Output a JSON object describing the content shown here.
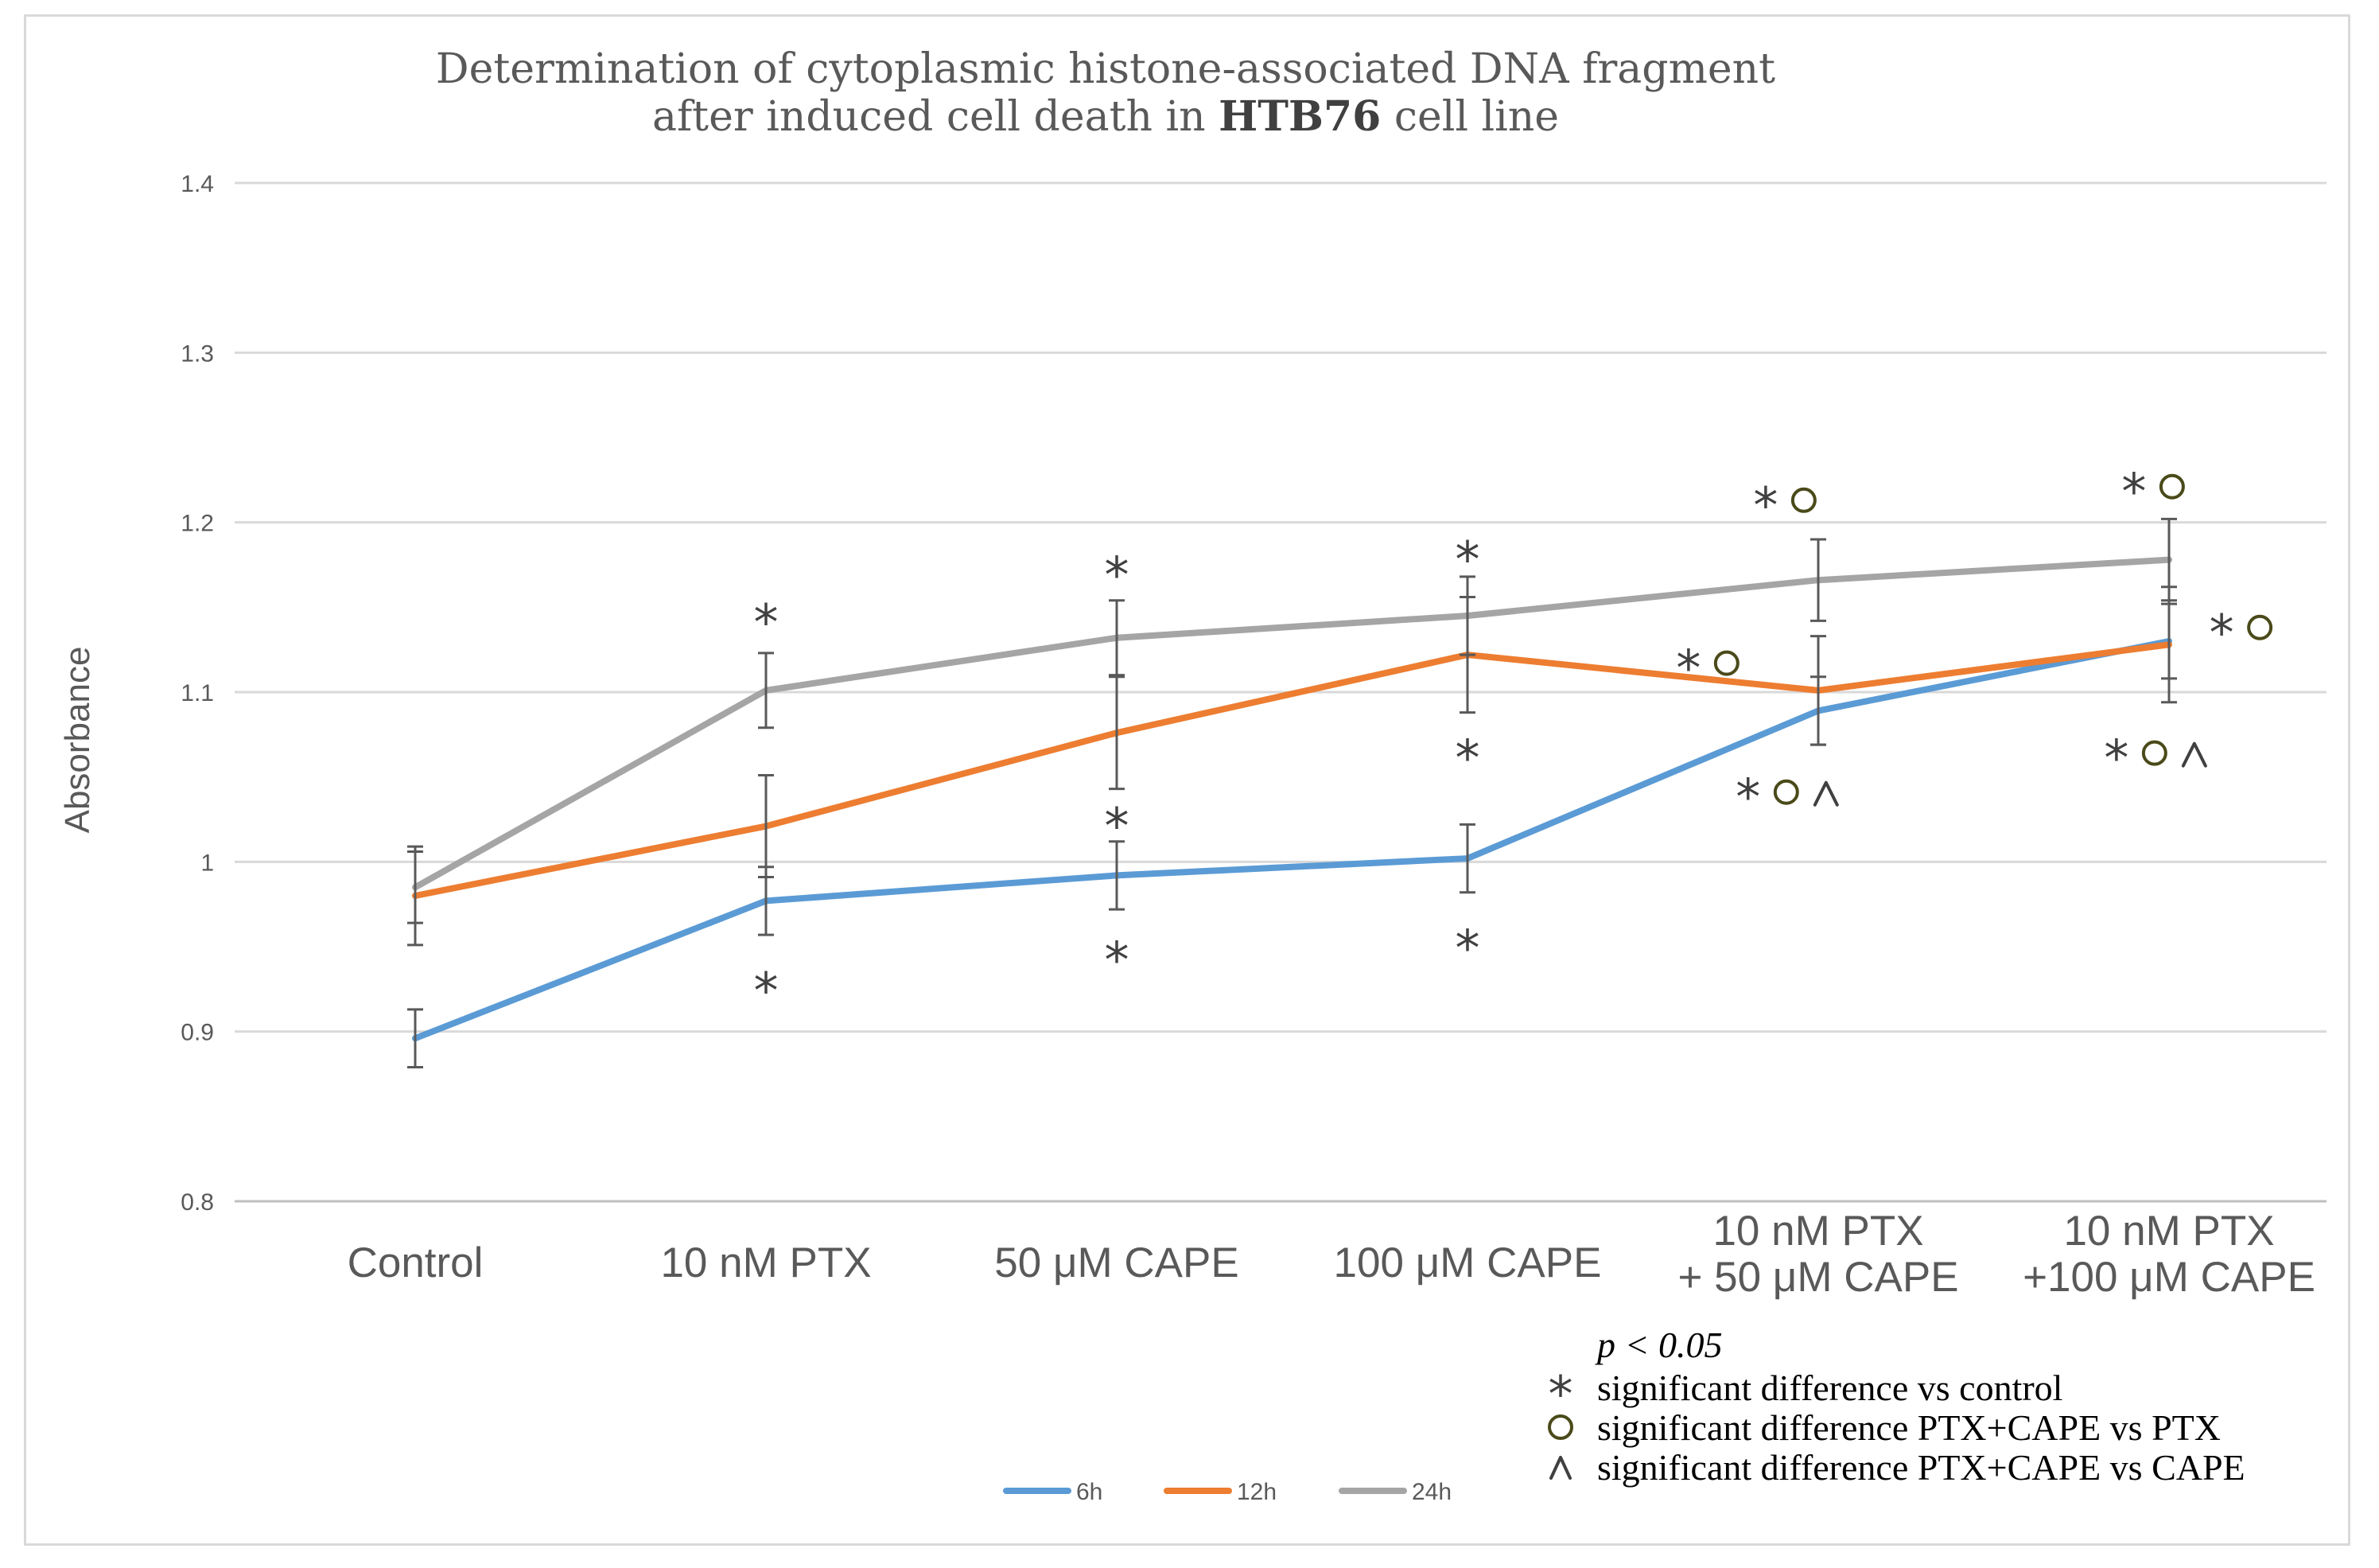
{
  "chart_data": {
    "type": "line",
    "title_line1": "Determination of cytoplasmic histone-associated DNA fragment",
    "title_line2_pre": "after induced cell death in ",
    "title_line2_bold": "HTB76",
    "title_line2_post": " cell line",
    "ylabel": "Absorbance",
    "xlabel": "",
    "ylim": [
      0.8,
      1.4
    ],
    "yticks": [
      0.8,
      0.9,
      1,
      1.1,
      1.2,
      1.3,
      1.4
    ],
    "ytick_labels": [
      "0.8",
      "0.9",
      "1",
      "1.1",
      "1.2",
      "1.3",
      "1.4"
    ],
    "grid": true,
    "categories": [
      [
        "Control"
      ],
      [
        "10 nM PTX"
      ],
      [
        "50 μM CAPE"
      ],
      [
        "100 μM CAPE"
      ],
      [
        "10 nM PTX",
        "+ 50 μM CAPE"
      ],
      [
        "10 nM PTX",
        "+100 μM CAPE"
      ]
    ],
    "series": [
      {
        "name": "6h",
        "color": "#5B9BD5",
        "values": [
          0.896,
          0.977,
          0.992,
          1.002,
          1.089,
          1.13
        ],
        "errors": [
          0.017,
          0.02,
          0.02,
          0.02,
          0.02,
          0.022
        ]
      },
      {
        "name": "12h",
        "color": "#ED7D31",
        "values": [
          0.98,
          1.021,
          1.076,
          1.122,
          1.101,
          1.128
        ],
        "errors": [
          0.029,
          0.03,
          0.033,
          0.034,
          0.032,
          0.034
        ]
      },
      {
        "name": "24h",
        "color": "#A5A5A5",
        "values": [
          0.985,
          1.101,
          1.132,
          1.145,
          1.166,
          1.178
        ],
        "errors": [
          0.021,
          0.022,
          0.022,
          0.023,
          0.024,
          0.024
        ]
      }
    ],
    "legend_position": "bottom",
    "significance_marks": [
      {
        "category": 1,
        "value": 1.145,
        "text": "*",
        "circle": false,
        "caret": false
      },
      {
        "category": 1,
        "value": 0.928,
        "text": "*",
        "circle": false,
        "caret": false
      },
      {
        "category": 2,
        "value": 1.173,
        "text": "*",
        "circle": false,
        "caret": false
      },
      {
        "category": 2,
        "value": 1.025,
        "text": "*",
        "circle": false,
        "caret": false
      },
      {
        "category": 2,
        "value": 0.946,
        "text": "*",
        "circle": false,
        "caret": false
      },
      {
        "category": 3,
        "value": 1.182,
        "text": "*",
        "circle": false,
        "caret": false
      },
      {
        "category": 3,
        "value": 1.065,
        "text": "*",
        "circle": false,
        "caret": false
      },
      {
        "category": 3,
        "value": 0.953,
        "text": "*",
        "circle": false,
        "caret": false
      },
      {
        "category": 4,
        "value": 1.214,
        "text": "*",
        "circle": true,
        "caret": false,
        "dx": -0.15
      },
      {
        "category": 4,
        "value": 1.118,
        "text": "*",
        "circle": true,
        "caret": false,
        "dx": -0.37
      },
      {
        "category": 4,
        "value": 1.042,
        "text": "*",
        "circle": true,
        "caret": true,
        "dx": -0.2
      },
      {
        "category": 5,
        "value": 1.222,
        "text": "*",
        "circle": true,
        "caret": false,
        "dx": -0.1
      },
      {
        "category": 5,
        "value": 1.139,
        "text": "*",
        "circle": true,
        "caret": false,
        "dx": 0.15
      },
      {
        "category": 5,
        "value": 1.065,
        "text": "*",
        "circle": true,
        "caret": true,
        "dx": -0.15
      }
    ],
    "notes": {
      "p_value": "p < 0.05",
      "items": [
        {
          "symbol": "star",
          "text": "significant difference vs control"
        },
        {
          "symbol": "circle",
          "text": "significant difference PTX+CAPE vs PTX"
        },
        {
          "symbol": "caret",
          "text": "significant difference PTX+CAPE vs CAPE"
        }
      ]
    }
  },
  "colors": {
    "grid": "#d9d9d9",
    "axis": "#bfbfbf",
    "error_bar": "#595959",
    "sig_text": "#404040",
    "circle_outline": "#4a4a1a"
  }
}
